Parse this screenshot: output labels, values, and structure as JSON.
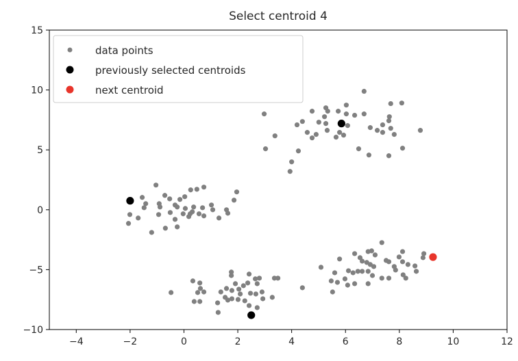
{
  "chart_data": {
    "type": "scatter",
    "title": "Select centroid 4",
    "xlabel": "",
    "ylabel": "",
    "xlim": [
      -5,
      12
    ],
    "ylim": [
      -10,
      15
    ],
    "xticks": [
      -4,
      -2,
      0,
      2,
      4,
      6,
      8,
      10,
      12
    ],
    "yticks": [
      -10,
      -5,
      0,
      5,
      10,
      15
    ],
    "grid": false,
    "legend_placement": "top-left",
    "series": [
      {
        "name": "data points",
        "color": "#808080",
        "marker": "small-circle",
        "points": [
          [
            6.69,
            9.89
          ],
          [
            2.98,
            8.0
          ],
          [
            4.76,
            8.23
          ],
          [
            5.27,
            8.51
          ],
          [
            5.34,
            8.23
          ],
          [
            5.73,
            8.23
          ],
          [
            6.03,
            8.74
          ],
          [
            6.03,
            8.0
          ],
          [
            6.34,
            7.89
          ],
          [
            6.69,
            8.0
          ],
          [
            7.68,
            8.86
          ],
          [
            8.09,
            8.91
          ],
          [
            5.22,
            7.77
          ],
          [
            4.4,
            7.37
          ],
          [
            4.2,
            7.09
          ],
          [
            5.01,
            7.31
          ],
          [
            5.27,
            7.2
          ],
          [
            6.08,
            7.03
          ],
          [
            7.63,
            7.77
          ],
          [
            7.61,
            7.43
          ],
          [
            7.38,
            7.09
          ],
          [
            6.92,
            6.86
          ],
          [
            7.18,
            6.63
          ],
          [
            7.38,
            6.46
          ],
          [
            7.68,
            6.8
          ],
          [
            7.81,
            6.29
          ],
          [
            8.78,
            6.63
          ],
          [
            5.32,
            6.63
          ],
          [
            4.58,
            6.46
          ],
          [
            4.91,
            6.29
          ],
          [
            4.76,
            6.0
          ],
          [
            5.78,
            6.46
          ],
          [
            5.65,
            6.06
          ],
          [
            5.93,
            6.23
          ],
          [
            3.38,
            6.17
          ],
          [
            3.03,
            5.09
          ],
          [
            4.25,
            4.91
          ],
          [
            6.49,
            5.09
          ],
          [
            6.87,
            4.57
          ],
          [
            7.61,
            4.51
          ],
          [
            8.12,
            5.14
          ],
          [
            4.0,
            4.0
          ],
          [
            3.94,
            3.2
          ],
          [
            -1.04,
            2.06
          ],
          [
            -1.55,
            1.03
          ],
          [
            -0.71,
            1.2
          ],
          [
            -0.53,
            0.91
          ],
          [
            -1.42,
            0.51
          ],
          [
            -1.48,
            0.17
          ],
          [
            -0.92,
            0.51
          ],
          [
            -0.89,
            0.23
          ],
          [
            -0.33,
            0.4
          ],
          [
            -0.15,
            0.86
          ],
          [
            0.03,
            1.09
          ],
          [
            0.25,
            1.66
          ],
          [
            0.48,
            1.71
          ],
          [
            0.74,
            1.89
          ],
          [
            1.96,
            1.49
          ],
          [
            1.86,
            0.8
          ],
          [
            -0.25,
            0.23
          ],
          [
            0.05,
            0.11
          ],
          [
            0.36,
            0.23
          ],
          [
            0.69,
            0.17
          ],
          [
            1.02,
            0.4
          ],
          [
            1.07,
            0.0
          ],
          [
            1.58,
            0.0
          ],
          [
            -2.01,
            -0.4
          ],
          [
            -1.7,
            -0.69
          ],
          [
            -0.94,
            -0.4
          ],
          [
            -0.51,
            -0.23
          ],
          [
            -0.03,
            -0.34
          ],
          [
            0.23,
            -0.34
          ],
          [
            0.56,
            -0.34
          ],
          [
            0.74,
            -0.51
          ],
          [
            1.3,
            -0.69
          ],
          [
            1.63,
            -0.29
          ],
          [
            -0.33,
            -0.8
          ],
          [
            -2.06,
            -1.14
          ],
          [
            -0.69,
            -1.54
          ],
          [
            -0.25,
            -1.43
          ],
          [
            -1.2,
            -1.89
          ],
          [
            0.31,
            -0.17
          ],
          [
            0.18,
            -0.57
          ],
          [
            -0.48,
            -6.91
          ],
          [
            0.33,
            -5.94
          ],
          [
            0.59,
            -6.11
          ],
          [
            0.61,
            -6.57
          ],
          [
            0.51,
            -6.91
          ],
          [
            0.74,
            -6.86
          ],
          [
            0.38,
            -7.66
          ],
          [
            0.59,
            -7.66
          ],
          [
            1.27,
            -8.57
          ],
          [
            1.25,
            -7.77
          ],
          [
            1.37,
            -6.86
          ],
          [
            1.58,
            -6.57
          ],
          [
            1.53,
            -7.31
          ],
          [
            1.63,
            -7.54
          ],
          [
            1.78,
            -6.74
          ],
          [
            1.78,
            -7.43
          ],
          [
            1.91,
            -6.17
          ],
          [
            2.04,
            -6.63
          ],
          [
            2.09,
            -7.03
          ],
          [
            2.01,
            -7.49
          ],
          [
            2.21,
            -6.34
          ],
          [
            2.26,
            -7.6
          ],
          [
            2.37,
            -6.11
          ],
          [
            2.42,
            -8.0
          ],
          [
            1.76,
            -5.2
          ],
          [
            1.76,
            -5.49
          ],
          [
            2.42,
            -5.37
          ],
          [
            2.65,
            -5.77
          ],
          [
            2.8,
            -5.71
          ],
          [
            2.72,
            -6.17
          ],
          [
            2.47,
            -6.97
          ],
          [
            2.67,
            -7.03
          ],
          [
            2.9,
            -6.86
          ],
          [
            2.93,
            -7.43
          ],
          [
            3.28,
            -7.31
          ],
          [
            2.72,
            -8.17
          ],
          [
            3.36,
            -5.71
          ],
          [
            3.49,
            -5.71
          ],
          [
            4.4,
            -6.51
          ],
          [
            7.35,
            -2.74
          ],
          [
            6.34,
            -3.66
          ],
          [
            6.84,
            -3.49
          ],
          [
            6.97,
            -3.43
          ],
          [
            7.1,
            -3.77
          ],
          [
            8.12,
            -3.49
          ],
          [
            8.91,
            -3.66
          ],
          [
            8.88,
            -4.0
          ],
          [
            5.78,
            -4.11
          ],
          [
            6.54,
            -4.0
          ],
          [
            6.62,
            -4.29
          ],
          [
            6.79,
            -4.4
          ],
          [
            6.92,
            -4.57
          ],
          [
            7.05,
            -4.74
          ],
          [
            7.51,
            -4.23
          ],
          [
            7.61,
            -4.34
          ],
          [
            7.99,
            -3.94
          ],
          [
            8.12,
            -4.34
          ],
          [
            8.32,
            -4.57
          ],
          [
            8.58,
            -4.69
          ],
          [
            8.63,
            -5.14
          ],
          [
            7.81,
            -4.74
          ],
          [
            7.86,
            -5.03
          ],
          [
            5.09,
            -4.8
          ],
          [
            5.6,
            -5.26
          ],
          [
            6.11,
            -5.09
          ],
          [
            6.28,
            -5.26
          ],
          [
            6.46,
            -5.14
          ],
          [
            6.62,
            -5.14
          ],
          [
            6.84,
            -5.14
          ],
          [
            7.0,
            -5.49
          ],
          [
            7.35,
            -5.71
          ],
          [
            7.61,
            -5.71
          ],
          [
            8.14,
            -5.43
          ],
          [
            8.24,
            -5.71
          ],
          [
            5.47,
            -5.94
          ],
          [
            5.7,
            -6.06
          ],
          [
            5.98,
            -5.77
          ],
          [
            6.08,
            -6.29
          ],
          [
            6.34,
            -6.17
          ],
          [
            6.84,
            -6.17
          ],
          [
            5.52,
            -6.86
          ]
        ]
      },
      {
        "name": "previously selected centroids",
        "color": "#000000",
        "marker": "circle",
        "points": [
          [
            5.85,
            7.2
          ],
          [
            -2.0,
            0.75
          ],
          [
            2.5,
            -8.8
          ]
        ]
      },
      {
        "name": "next centroid",
        "color": "#e8352b",
        "marker": "circle",
        "points": [
          [
            9.25,
            -3.95
          ]
        ]
      }
    ]
  }
}
